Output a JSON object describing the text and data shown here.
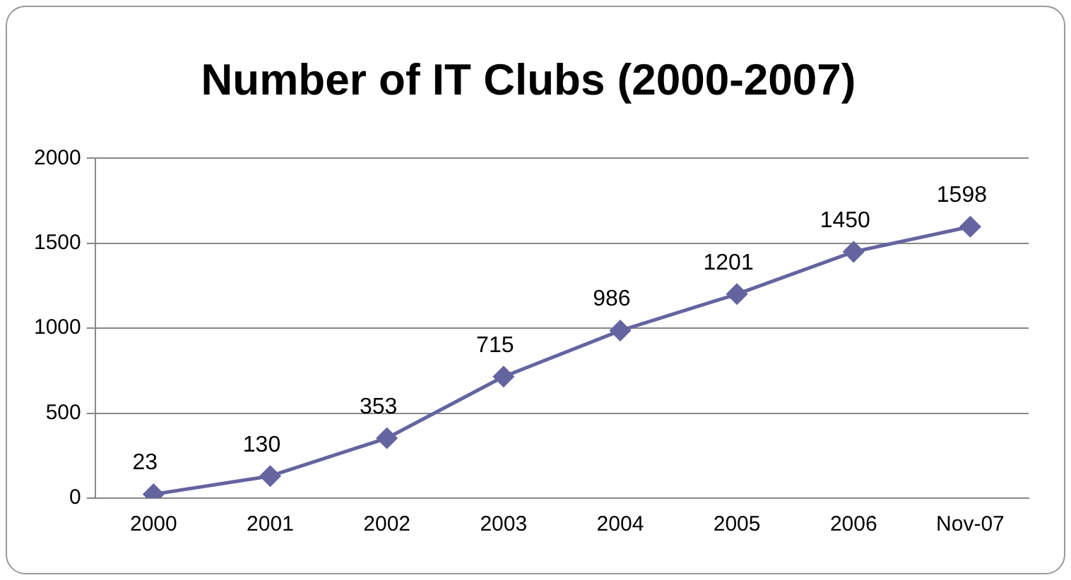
{
  "chart_data": {
    "type": "line",
    "title": "Number of IT Clubs (2000-2007)",
    "categories": [
      "2000",
      "2001",
      "2002",
      "2003",
      "2004",
      "2005",
      "2006",
      "Nov-07"
    ],
    "series": [
      {
        "color": "#6464a0",
        "values": [
          23,
          130,
          353,
          715,
          986,
          1201,
          1450,
          1598
        ]
      }
    ],
    "ylim": [
      0,
      2000
    ],
    "yticks": [
      0,
      500,
      1000,
      1500,
      2000
    ],
    "grid": "y",
    "legend": false,
    "marker": "diamond",
    "line_style": "solid",
    "data_labels": true
  }
}
